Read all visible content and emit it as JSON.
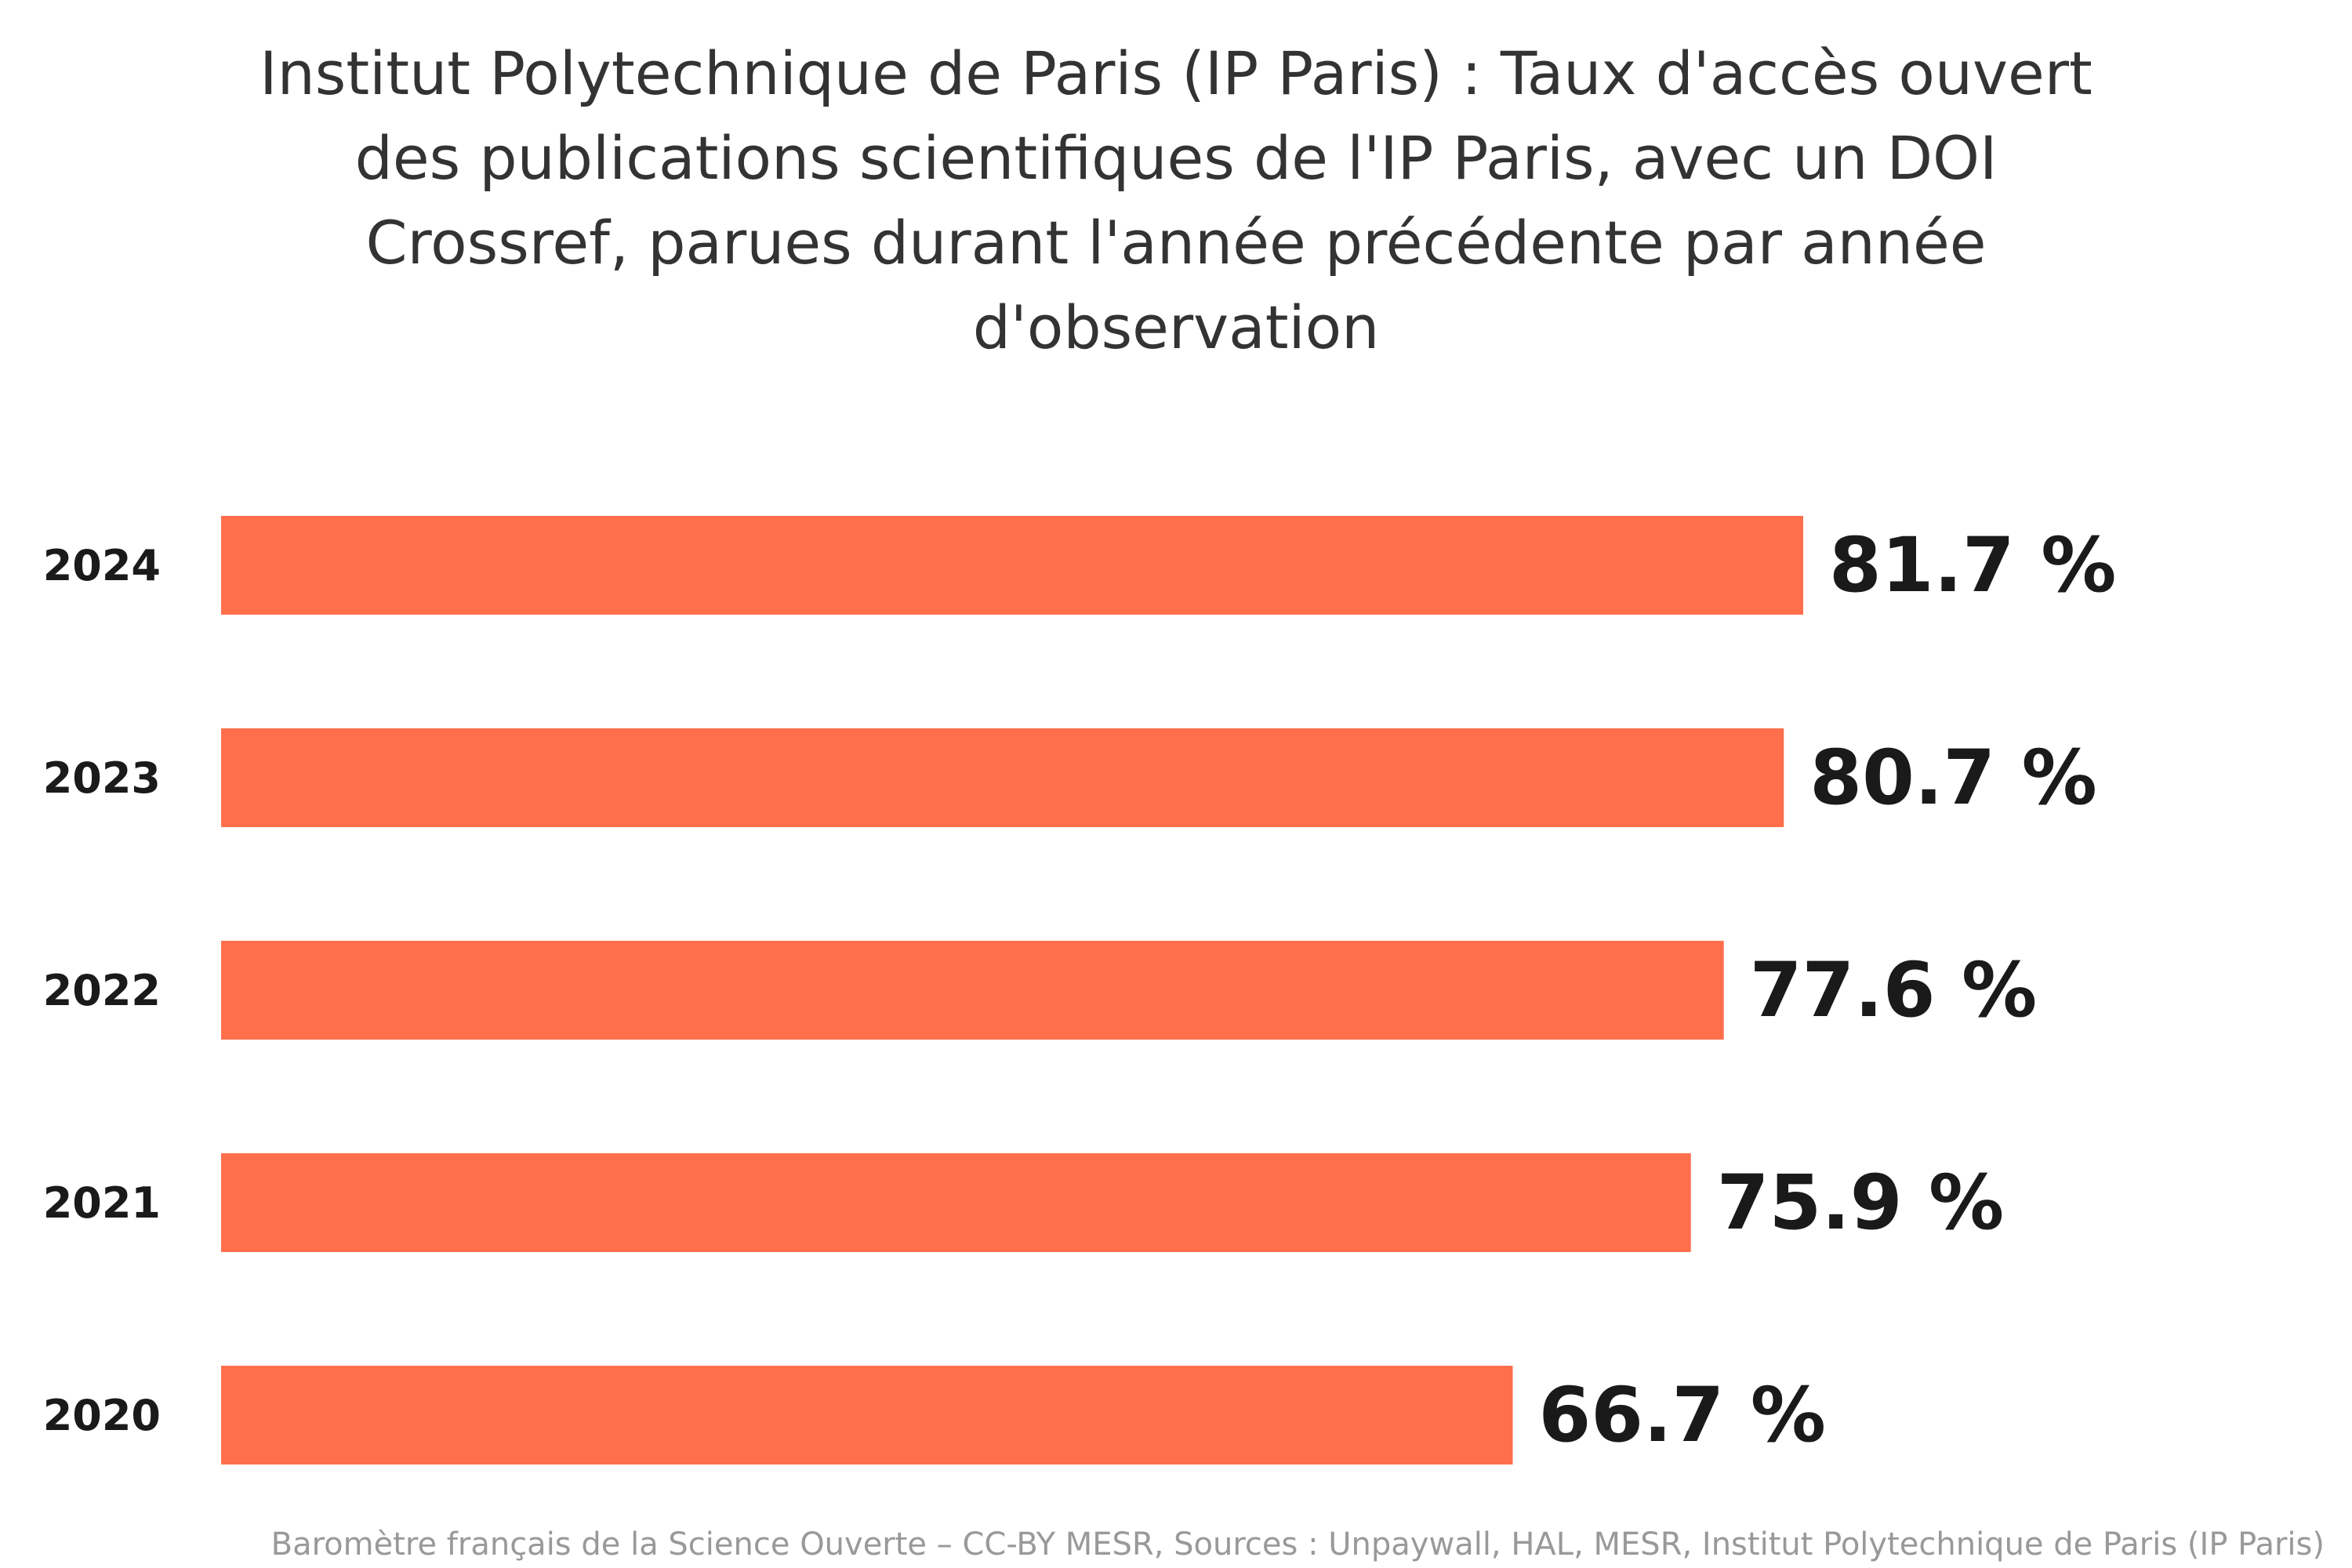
{
  "chart_data": {
    "type": "bar",
    "orientation": "horizontal",
    "title_lines": [
      "Institut Polytechnique de Paris (IP Paris) : Taux d'accès ouvert",
      "des publications scientifiques de l'IP Paris, avec un DOI",
      "Crossref, parues durant l'année précédente par année",
      "d'observation"
    ],
    "categories": [
      "2024",
      "2023",
      "2022",
      "2021",
      "2020"
    ],
    "values": [
      81.7,
      80.7,
      77.6,
      75.9,
      66.7
    ],
    "value_labels": [
      "81.7 %",
      "80.7 %",
      "77.6 %",
      "75.9 %",
      "66.7 %"
    ],
    "xlim": [
      0,
      100
    ],
    "grid": false,
    "legend": "none",
    "bar_color": "#ff6f4c",
    "footer": "Baromètre français de la Science Ouverte – CC-BY MESR, Sources : Unpaywall, HAL, MESR, Institut Polytechnique de Paris (IP Paris)"
  }
}
